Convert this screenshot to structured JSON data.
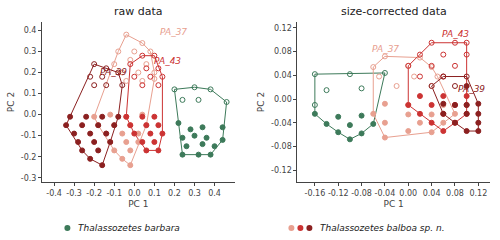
{
  "chart_data": [
    {
      "type": "scatter",
      "title": "raw data",
      "xlabel": "PC 1",
      "ylabel": "PC 2",
      "grid": false,
      "xlim": [
        -0.46,
        0.5
      ],
      "ylim": [
        -0.32,
        0.44
      ],
      "xticks": [
        -0.4,
        -0.3,
        -0.2,
        -0.1,
        {
          "value": 0.0,
          "label": "0.0"
        },
        0.1,
        0.2,
        0.3,
        0.4
      ],
      "yticks": [
        -0.3,
        -0.2,
        -0.1,
        {
          "value": 0.0,
          "label": "0.0"
        },
        0.1,
        0.2,
        0.3,
        0.4
      ],
      "series": [
        {
          "name": "Thalassozetes barbara",
          "color": "#3d7a5a",
          "marker": "open",
          "x": [
            0.2,
            0.3,
            0.38,
            0.24,
            0.32,
            0.46
          ],
          "y": [
            0.12,
            0.13,
            0.12,
            0.07,
            0.07,
            0.06
          ]
        },
        {
          "name": "Thalassozetes barbara",
          "color": "#3d7a5a",
          "marker": "filled",
          "x": [
            0.22,
            0.28,
            0.34,
            0.44,
            0.24,
            0.3,
            0.36,
            0.44,
            0.26,
            0.34,
            0.4,
            0.24,
            0.32,
            0.38
          ],
          "y": [
            -0.04,
            -0.07,
            -0.06,
            -0.06,
            -0.11,
            -0.1,
            -0.11,
            -0.12,
            -0.15,
            -0.14,
            -0.15,
            -0.19,
            -0.19,
            -0.19
          ]
        },
        {
          "name": "Thalassozetes balboa sp. n.",
          "color": "#e8a090",
          "marker": "open",
          "x": [
            -0.04,
            0.04,
            -0.08,
            0.0,
            0.08,
            -0.1,
            -0.02,
            0.06,
            -0.06,
            0.02,
            0.1,
            -0.04,
            0.04,
            0.1
          ],
          "y": [
            0.38,
            0.34,
            0.3,
            0.3,
            0.3,
            0.24,
            0.26,
            0.24,
            0.2,
            0.2,
            0.2,
            0.16,
            0.16,
            0.17
          ]
        },
        {
          "name": "Thalassozetes balboa sp. n.",
          "color": "#e8a090",
          "marker": "filled",
          "x": [
            -0.2,
            -0.12,
            -0.04,
            0.04,
            -0.18,
            -0.1,
            -0.02,
            0.06,
            -0.14,
            -0.06,
            0.02,
            -0.12,
            -0.04,
            0.02,
            -0.1,
            -0.02,
            -0.06,
            -0.02
          ],
          "y": [
            -0.01,
            0.0,
            -0.01,
            0.0,
            -0.05,
            -0.05,
            -0.05,
            -0.05,
            -0.09,
            -0.09,
            -0.09,
            -0.13,
            -0.13,
            -0.13,
            -0.17,
            -0.17,
            -0.21,
            -0.24
          ]
        },
        {
          "name": "Thalassozetes balboa sp. n.",
          "color": "#cc3333",
          "marker": "open",
          "x": [
            0.04,
            0.1,
            -0.02,
            0.06,
            0.12,
            0.0,
            0.08,
            0.14,
            0.04,
            0.12
          ],
          "y": [
            0.28,
            0.28,
            0.24,
            0.22,
            0.22,
            0.18,
            0.18,
            0.18,
            0.14,
            0.14
          ]
        },
        {
          "name": "Thalassozetes balboa sp. n.",
          "color": "#cc3333",
          "marker": "filled",
          "x": [
            -0.04,
            0.04,
            0.1,
            -0.02,
            0.06,
            0.12,
            0.0,
            0.08,
            0.14,
            0.04,
            0.1,
            0.06,
            0.12
          ],
          "y": [
            -0.01,
            -0.01,
            -0.01,
            -0.05,
            -0.05,
            -0.05,
            -0.09,
            -0.09,
            -0.09,
            -0.13,
            -0.13,
            -0.17,
            -0.17
          ]
        },
        {
          "name": "Thalassozetes balboa sp. n.",
          "color": "#8b2020",
          "marker": "open",
          "x": [
            -0.2,
            -0.14,
            -0.22,
            -0.16,
            -0.08,
            -0.2,
            -0.14,
            -0.06
          ],
          "y": [
            0.24,
            0.22,
            0.18,
            0.18,
            0.2,
            0.14,
            0.14,
            0.14
          ]
        },
        {
          "name": "Thalassozetes balboa sp. n.",
          "color": "#8b2020",
          "marker": "filled",
          "x": [
            -0.32,
            -0.24,
            -0.16,
            -0.08,
            -0.34,
            -0.26,
            -0.18,
            -0.1,
            -0.3,
            -0.22,
            -0.14,
            -0.28,
            -0.2,
            -0.12,
            -0.26,
            -0.18,
            -0.22,
            -0.16
          ],
          "y": [
            -0.01,
            -0.01,
            -0.01,
            -0.01,
            -0.05,
            -0.05,
            -0.05,
            -0.05,
            -0.09,
            -0.09,
            -0.09,
            -0.13,
            -0.13,
            -0.13,
            -0.17,
            -0.17,
            -0.21,
            -0.24
          ]
        }
      ],
      "annotations": [
        {
          "text": "PA_37",
          "x": 0.12,
          "y": 0.36,
          "color": "#e8a090"
        },
        {
          "text": "PA_43",
          "x": 0.09,
          "y": 0.22,
          "color": "#cc3333"
        },
        {
          "text": "PA_39",
          "x": -0.18,
          "y": 0.17,
          "color": "#8b2020"
        }
      ]
    },
    {
      "type": "scatter",
      "title": "size-corrected data",
      "xlabel": "PC 1",
      "ylabel": "PC 2",
      "grid": false,
      "xlim": [
        -0.19,
        0.14
      ],
      "ylim": [
        -0.14,
        0.13
      ],
      "xticks": [
        -0.16,
        -0.12,
        -0.08,
        -0.04,
        {
          "value": 0.0,
          "label": "0.00"
        },
        0.04,
        0.08,
        0.12
      ],
      "yticks": [
        -0.12,
        -0.08,
        -0.04,
        {
          "value": 0.0,
          "label": "0.00"
        },
        0.04,
        0.08,
        0.12
      ],
      "series": [
        {
          "name": "Thalassozetes barbara",
          "color": "#3d7a5a",
          "marker": "open",
          "x": [
            -0.16,
            -0.1,
            -0.04,
            -0.14,
            -0.08,
            -0.16
          ],
          "y": [
            0.042,
            0.042,
            0.044,
            0.015,
            0.018,
            -0.01
          ]
        },
        {
          "name": "Thalassozetes barbara",
          "color": "#3d7a5a",
          "marker": "filled",
          "x": [
            -0.16,
            -0.12,
            -0.08,
            -0.14,
            -0.1,
            -0.06,
            -0.12,
            -0.08,
            -0.1
          ],
          "y": [
            -0.025,
            -0.03,
            -0.028,
            -0.042,
            -0.044,
            -0.042,
            -0.056,
            -0.058,
            -0.068
          ]
        },
        {
          "name": "Thalassozetes balboa sp. n.",
          "color": "#e8a090",
          "marker": "open",
          "x": [
            -0.04,
            0.02,
            -0.06,
            0.0,
            0.04,
            -0.05,
            0.01,
            0.05,
            -0.02,
            0.04
          ],
          "y": [
            0.072,
            0.07,
            0.054,
            0.056,
            0.054,
            0.038,
            0.038,
            0.038,
            0.022,
            0.022
          ]
        },
        {
          "name": "Thalassozetes balboa sp. n.",
          "color": "#e8a090",
          "marker": "filled",
          "x": [
            -0.04,
            0.0,
            0.06,
            -0.06,
            0.0,
            0.04,
            0.08,
            -0.04,
            0.02,
            0.06,
            0.0,
            0.04,
            -0.04
          ],
          "y": [
            -0.008,
            -0.01,
            -0.01,
            -0.025,
            -0.026,
            -0.026,
            -0.025,
            -0.04,
            -0.04,
            -0.04,
            -0.054,
            -0.056,
            -0.065
          ]
        },
        {
          "name": "Thalassozetes balboa sp. n.",
          "color": "#cc3333",
          "marker": "open",
          "x": [
            0.04,
            0.08,
            0.1,
            0.02,
            0.06,
            0.1,
            0.0,
            0.04,
            0.08,
            0.02,
            0.06
          ],
          "y": [
            0.095,
            0.095,
            0.095,
            0.075,
            0.075,
            0.075,
            0.056,
            0.056,
            0.056,
            0.038,
            0.038
          ]
        },
        {
          "name": "Thalassozetes balboa sp. n.",
          "color": "#cc3333",
          "marker": "filled",
          "x": [
            0.02,
            0.06,
            0.1,
            0.0,
            0.04,
            0.08,
            0.1,
            0.02,
            0.06,
            0.1,
            0.04,
            0.08,
            0.06
          ],
          "y": [
            0.005,
            0.005,
            0.005,
            -0.01,
            -0.01,
            -0.01,
            -0.01,
            -0.025,
            -0.025,
            -0.025,
            -0.04,
            -0.04,
            -0.054
          ]
        },
        {
          "name": "Thalassozetes balboa sp. n.",
          "color": "#8b2020",
          "marker": "open",
          "x": [
            0.06,
            0.1,
            0.04,
            0.08
          ],
          "y": [
            0.038,
            0.038,
            0.022,
            0.022
          ]
        },
        {
          "name": "Thalassozetes balboa sp. n.",
          "color": "#8b2020",
          "marker": "filled",
          "x": [
            0.06,
            0.08,
            0.1,
            0.12,
            0.06,
            0.1,
            0.12,
            0.08,
            0.12,
            0.1,
            0.12,
            0.1
          ],
          "y": [
            -0.008,
            -0.01,
            -0.01,
            -0.008,
            -0.025,
            -0.025,
            -0.025,
            -0.04,
            -0.04,
            -0.054,
            -0.054,
            0.022
          ]
        }
      ],
      "annotations": [
        {
          "text": "PA_43",
          "x": 0.055,
          "y": 0.098,
          "color": "#cc3333"
        },
        {
          "text": "PA_37",
          "x": -0.065,
          "y": 0.072,
          "color": "#e8a090"
        },
        {
          "text": "PA_39",
          "x": 0.082,
          "y": 0.005,
          "color": "#8b2020"
        }
      ]
    }
  ]
}
